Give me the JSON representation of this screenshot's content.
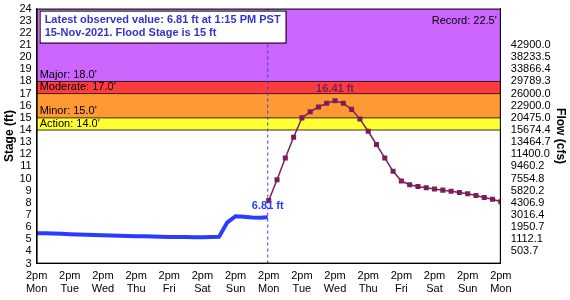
{
  "chart_data": {
    "type": "line",
    "y_label": "Stage (ft)",
    "y2_label": "Flow (cfs)",
    "grid": false,
    "xlim": [
      0,
      14
    ],
    "xticks": [
      {
        "value": 0,
        "label": [
          "2pm",
          "Mon"
        ]
      },
      {
        "value": 1,
        "label": [
          "2pm",
          "Tue"
        ]
      },
      {
        "value": 2,
        "label": [
          "2pm",
          "Wed"
        ]
      },
      {
        "value": 3,
        "label": [
          "2pm",
          "Thu"
        ]
      },
      {
        "value": 4,
        "label": [
          "2pm",
          "Fri"
        ]
      },
      {
        "value": 5,
        "label": [
          "2pm",
          "Sat"
        ]
      },
      {
        "value": 6,
        "label": [
          "2pm",
          "Sun"
        ]
      },
      {
        "value": 7,
        "label": [
          "2pm",
          "Mon"
        ]
      },
      {
        "value": 8,
        "label": [
          "2pm",
          "Tue"
        ]
      },
      {
        "value": 9,
        "label": [
          "2pm",
          "Wed"
        ]
      },
      {
        "value": 10,
        "label": [
          "2pm",
          "Thu"
        ]
      },
      {
        "value": 11,
        "label": [
          "2pm",
          "Fri"
        ]
      },
      {
        "value": 12,
        "label": [
          "2pm",
          "Sat"
        ]
      },
      {
        "value": 13,
        "label": [
          "2pm",
          "Sun"
        ]
      },
      {
        "value": 14,
        "label": [
          "2pm",
          "Mon"
        ]
      }
    ],
    "ylim": [
      3,
      24
    ],
    "yticks": [
      3,
      4,
      5,
      6,
      7,
      8,
      9,
      10,
      11,
      12,
      13,
      14,
      15,
      16,
      17,
      18,
      19,
      20,
      21,
      22,
      23,
      24
    ],
    "y2categories": [
      null,
      null,
      null,
      "42900.0",
      "38233.5",
      "33866.4",
      "29789.3",
      "26000.0",
      "22900.0",
      "20475.0",
      "15674.4",
      "13464.7",
      "11400.0",
      "9460.2",
      "7554.8",
      "5820.2",
      "4306.9",
      "3016.4",
      "1950.7",
      "1112.1",
      "503.7",
      null
    ],
    "series": [
      {
        "color": "#2b3bff",
        "line_style": "solid",
        "marker": "none",
        "x": [
          0,
          0.25,
          0.5,
          0.75,
          1,
          1.25,
          1.5,
          1.75,
          2,
          2.25,
          2.5,
          2.75,
          3,
          3.25,
          3.5,
          3.75,
          4,
          4.25,
          4.5,
          4.75,
          5,
          5.25,
          5.5,
          5.75,
          6,
          6.25,
          6.5,
          6.75,
          6.97
        ],
        "values": [
          5.5,
          5.5,
          5.48,
          5.45,
          5.42,
          5.4,
          5.38,
          5.36,
          5.34,
          5.32,
          5.3,
          5.28,
          5.26,
          5.25,
          5.24,
          5.22,
          5.2,
          5.2,
          5.19,
          5.18,
          5.18,
          5.19,
          5.2,
          6.4,
          6.9,
          6.85,
          6.8,
          6.78,
          6.81
        ]
      },
      {
        "color": "#7a1f5c",
        "line_style": "solid",
        "marker": "square",
        "x": [
          7,
          7.25,
          7.5,
          7.75,
          8,
          8.25,
          8.5,
          8.75,
          9,
          9.25,
          9.5,
          9.75,
          10,
          10.25,
          10.5,
          10.75,
          11,
          11.25,
          11.5,
          11.75,
          12,
          12.25,
          12.5,
          12.75,
          13,
          13.25,
          13.5,
          13.75,
          14
        ],
        "values": [
          8.2,
          9.9,
          11.7,
          13.4,
          15.0,
          15.5,
          15.9,
          16.2,
          16.41,
          16.2,
          15.7,
          14.9,
          13.9,
          12.8,
          11.7,
          10.6,
          9.8,
          9.5,
          9.35,
          9.25,
          9.15,
          9.05,
          8.95,
          8.85,
          8.75,
          8.6,
          8.45,
          8.3,
          8.1
        ]
      }
    ],
    "flood_stages": [
      {
        "label": "Major: 18.0'",
        "value": 18,
        "color": "#cc66ff"
      },
      {
        "label": "Moderate: 17.0'",
        "value": 17,
        "color": "#ff3b3b"
      },
      {
        "label": "Minor: 15.0'",
        "value": 15,
        "color": "#ff9933"
      },
      {
        "label": "Action: 14.0'",
        "value": 14,
        "color": "#ffff33"
      }
    ],
    "record": {
      "label": "Record: 22.5'",
      "value": 22.5
    },
    "info_box": [
      "Latest observed value: 6.81 ft at 1:15 PM PST",
      "15-Nov-2021. Flood Stage is 15 ft"
    ],
    "annotations": [
      {
        "text": "6.81 ft",
        "x": 6.97,
        "y": 6.81,
        "color": "#2b3bff"
      },
      {
        "text": "16.41 ft",
        "x": 9,
        "y": 16.41,
        "color": "#7a1f5c"
      }
    ]
  }
}
